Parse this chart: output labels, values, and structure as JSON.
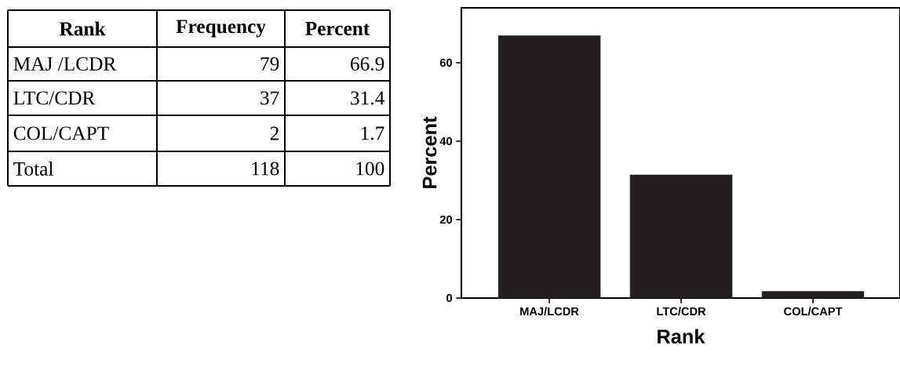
{
  "chart_data": [
    {
      "type": "other",
      "annotations": [
        "Rank"
      ],
      "categories": [
        "MAJ /LCDR",
        "LTC/CDR",
        "COL/CAPT",
        "Total"
      ],
      "series": [
        {
          "name": "Frequency",
          "values": [
            79,
            37,
            2,
            118
          ]
        },
        {
          "name": "Percent",
          "values": [
            66.9,
            31.4,
            1.7,
            100
          ]
        }
      ],
      "data_labels": true
    },
    {
      "type": "bar",
      "categories": [
        "MAJ/LCDR",
        "LTC/CDR",
        "COL/CAPT"
      ],
      "values": [
        66.9,
        31.4,
        1.7
      ],
      "color": "#231f20",
      "xlabel": "Rank",
      "ylabel": "Percent",
      "ylim": [
        0,
        74
      ],
      "yticks": [
        0,
        20,
        40,
        60
      ],
      "grid": false
    }
  ]
}
